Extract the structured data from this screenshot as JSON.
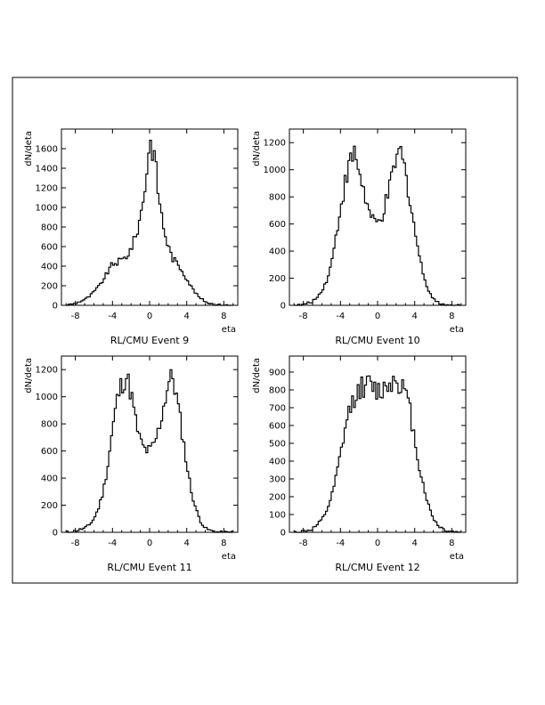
{
  "chart_data": [
    {
      "type": "histogram",
      "title": "RL/CMU Event 9",
      "xlabel": "eta",
      "ylabel": "dN/deta",
      "xlim": [
        -9.5,
        9.5
      ],
      "ylim": [
        0,
        1800
      ],
      "xticks": [
        -8,
        -4,
        0,
        4,
        8
      ],
      "yticks": [
        0,
        200,
        400,
        600,
        800,
        1000,
        1200,
        1400,
        1600
      ],
      "grid": false,
      "profile": {
        "kind": "peak",
        "height": 1690,
        "base": 380,
        "seed": 9
      },
      "x": [
        -9.0,
        -8.5,
        -8.0,
        -7.5,
        -7.0,
        -6.5,
        -6.0,
        -5.5,
        -5.0,
        -4.5,
        -4.0,
        -3.5,
        -3.0,
        -2.5,
        -2.0,
        -1.5,
        -1.0,
        -0.5,
        0.0,
        0.5,
        1.0,
        1.5,
        2.0,
        2.5,
        3.0,
        3.5,
        4.0,
        4.5,
        5.0,
        5.5,
        6.0,
        6.5,
        7.0,
        7.5,
        8.0,
        8.5,
        9.0
      ],
      "values": [
        0,
        10,
        20,
        40,
        60,
        90,
        140,
        190,
        260,
        340,
        420,
        440,
        460,
        500,
        580,
        700,
        900,
        1200,
        1680,
        1550,
        1100,
        800,
        600,
        480,
        420,
        360,
        270,
        190,
        120,
        70,
        40,
        20,
        10,
        5,
        0,
        0,
        0
      ]
    },
    {
      "type": "histogram",
      "title": "RL/CMU Event 10",
      "xlabel": "eta",
      "ylabel": "dN/deta",
      "xlim": [
        -9.5,
        9.5
      ],
      "ylim": [
        0,
        1300
      ],
      "xticks": [
        -8,
        -4,
        0,
        4,
        8
      ],
      "yticks": [
        0,
        200,
        400,
        600,
        800,
        1000,
        1200
      ],
      "grid": false,
      "profile": {
        "kind": "double",
        "height": 1130,
        "dip": 600,
        "seed": 10
      },
      "x": [
        -9.0,
        -8.5,
        -8.0,
        -7.5,
        -7.0,
        -6.5,
        -6.0,
        -5.5,
        -5.0,
        -4.5,
        -4.0,
        -3.5,
        -3.0,
        -2.5,
        -2.0,
        -1.5,
        -1.0,
        -0.5,
        0.0,
        0.5,
        1.0,
        1.5,
        2.0,
        2.5,
        3.0,
        3.5,
        4.0,
        4.5,
        5.0,
        5.5,
        6.0,
        6.5,
        7.0,
        7.5,
        8.0,
        8.5,
        9.0
      ],
      "values": [
        0,
        0,
        5,
        15,
        30,
        60,
        110,
        180,
        300,
        500,
        720,
        900,
        1050,
        1120,
        1000,
        850,
        700,
        620,
        600,
        660,
        780,
        920,
        1080,
        1130,
        980,
        780,
        560,
        360,
        210,
        110,
        50,
        20,
        10,
        0,
        0,
        0,
        0
      ]
    },
    {
      "type": "histogram",
      "title": "RL/CMU Event 11",
      "xlabel": "eta",
      "ylabel": "dN/deta",
      "xlim": [
        -9.5,
        9.5
      ],
      "ylim": [
        0,
        1300
      ],
      "xticks": [
        -8,
        -4,
        0,
        4,
        8
      ],
      "yticks": [
        0,
        200,
        400,
        600,
        800,
        1000,
        1200
      ],
      "grid": false,
      "profile": {
        "kind": "double",
        "height": 1160,
        "dip": 600,
        "seed": 11
      },
      "x": [
        -9.0,
        -8.5,
        -8.0,
        -7.5,
        -7.0,
        -6.5,
        -6.0,
        -5.5,
        -5.0,
        -4.5,
        -4.0,
        -3.5,
        -3.0,
        -2.5,
        -2.0,
        -1.5,
        -1.0,
        -0.5,
        0.0,
        0.5,
        1.0,
        1.5,
        2.0,
        2.5,
        3.0,
        3.5,
        4.0,
        4.5,
        5.0,
        5.5,
        6.0,
        6.5,
        7.0,
        7.5,
        8.0,
        8.5,
        9.0
      ],
      "values": [
        0,
        5,
        10,
        20,
        30,
        55,
        100,
        180,
        300,
        500,
        760,
        980,
        1100,
        1150,
        1030,
        820,
        670,
        610,
        600,
        650,
        760,
        930,
        1100,
        1150,
        960,
        740,
        500,
        300,
        170,
        80,
        30,
        15,
        5,
        0,
        0,
        0,
        0
      ]
    },
    {
      "type": "histogram",
      "title": "RL/CMU Event 12",
      "xlabel": "eta",
      "ylabel": "dN/deta",
      "xlim": [
        -9.5,
        9.5
      ],
      "ylim": [
        0,
        990
      ],
      "xticks": [
        -8,
        -4,
        0,
        4,
        8
      ],
      "yticks": [
        0,
        100,
        200,
        300,
        400,
        500,
        600,
        700,
        800,
        900
      ],
      "grid": false,
      "profile": {
        "kind": "plateau",
        "height": 820,
        "seed": 12
      },
      "x": [
        -9.0,
        -8.5,
        -8.0,
        -7.5,
        -7.0,
        -6.5,
        -6.0,
        -5.5,
        -5.0,
        -4.5,
        -4.0,
        -3.5,
        -3.0,
        -2.5,
        -2.0,
        -1.5,
        -1.0,
        -0.5,
        0.0,
        0.5,
        1.0,
        1.5,
        2.0,
        2.5,
        3.0,
        3.5,
        4.0,
        4.5,
        5.0,
        5.5,
        6.0,
        6.5,
        7.0,
        7.5,
        8.0,
        8.5,
        9.0
      ],
      "values": [
        0,
        0,
        5,
        10,
        20,
        40,
        70,
        120,
        190,
        300,
        430,
        580,
        690,
        760,
        800,
        820,
        830,
        810,
        790,
        800,
        830,
        850,
        860,
        840,
        780,
        680,
        520,
        370,
        250,
        150,
        80,
        40,
        20,
        10,
        5,
        0,
        0
      ]
    }
  ]
}
